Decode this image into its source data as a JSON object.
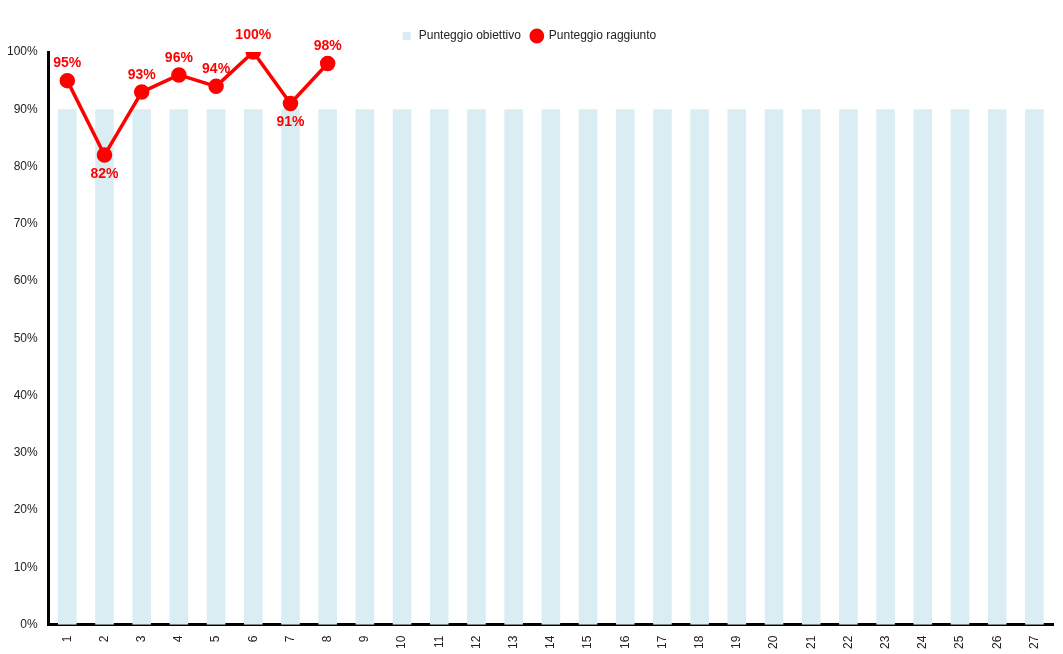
{
  "chart_data": {
    "type": "bar",
    "categories": [
      "1",
      "2",
      "3",
      "4",
      "5",
      "6",
      "7",
      "8",
      "9",
      "10",
      "11",
      "12",
      "13",
      "14",
      "15",
      "16",
      "17",
      "18",
      "19",
      "20",
      "21",
      "22",
      "23",
      "24",
      "25",
      "26",
      "27"
    ],
    "series": [
      {
        "name": "Punteggio obiettivo",
        "color": "#daedf3",
        "values": [
          90,
          90,
          90,
          90,
          90,
          90,
          90,
          90,
          90,
          90,
          90,
          90,
          90,
          90,
          90,
          90,
          90,
          90,
          90,
          90,
          90,
          90,
          90,
          90,
          90,
          90,
          90
        ]
      },
      {
        "name": "Punteggio raggiunto",
        "type": "line",
        "color": "#ff0000",
        "marker": "circle",
        "values": [
          95,
          82,
          93,
          96,
          94,
          100,
          91,
          98,
          null,
          null,
          null,
          null,
          null,
          null,
          null,
          null,
          null,
          null,
          null,
          null,
          null,
          null,
          null,
          null,
          null,
          null,
          null
        ],
        "value_labels": [
          "95%",
          "82%",
          "93%",
          "96%",
          "94%",
          "100%",
          "91%",
          "98%",
          null,
          null,
          null,
          null,
          null,
          null,
          null,
          null,
          null,
          null,
          null,
          null,
          null,
          null,
          null,
          null,
          null,
          null,
          null
        ]
      }
    ],
    "ylim": [
      0,
      100
    ],
    "yticks": [
      {
        "value": 0,
        "label": "0%"
      },
      {
        "value": 10,
        "label": "10%"
      },
      {
        "value": 20,
        "label": "20%"
      },
      {
        "value": 30,
        "label": "30%"
      },
      {
        "value": 40,
        "label": "40%"
      },
      {
        "value": 50,
        "label": "50%"
      },
      {
        "value": 60,
        "label": "60%"
      },
      {
        "value": 70,
        "label": "70%"
      },
      {
        "value": 80,
        "label": "80%"
      },
      {
        "value": 90,
        "label": "90%"
      },
      {
        "value": 100,
        "label": "100%"
      }
    ],
    "grid": false,
    "legend": "top"
  }
}
